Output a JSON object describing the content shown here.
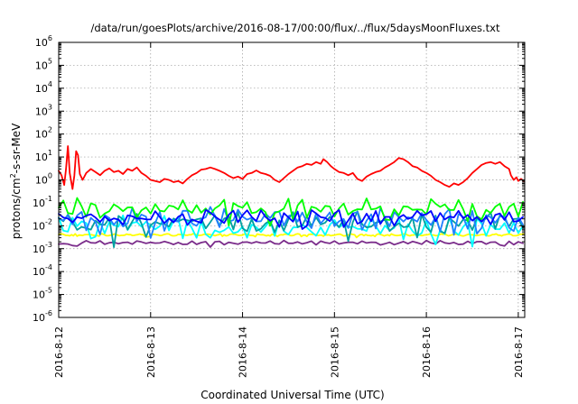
{
  "chart_data": {
    "type": "line",
    "title": "/data/run/goesPlots/archive/2016-08-17/00:00/flux/../flux/5daysMoonFluxes.txt",
    "xlabel": "Coordinated Universal Time (UTC)",
    "ylabel_base": "protons/cm",
    "ylabel_sup": "2",
    "ylabel_rest": "-s-sr-MeV",
    "x_range_days": [
      0,
      5.07
    ],
    "x_ticks": [
      {
        "label": "2016-8-12",
        "day": 0
      },
      {
        "label": "2016-8-13",
        "day": 1
      },
      {
        "label": "2016-8-14",
        "day": 2
      },
      {
        "label": "2016-8-15",
        "day": 3
      },
      {
        "label": "2016-8-16",
        "day": 4
      },
      {
        "label": "2016-8-17",
        "day": 5
      }
    ],
    "y_scale": "log",
    "y_range_exp": [
      -6,
      6
    ],
    "y_ticks": [
      {
        "base": "10",
        "exp": "6",
        "value": 6
      },
      {
        "base": "10",
        "exp": "5",
        "value": 5
      },
      {
        "base": "10",
        "exp": "4",
        "value": 4
      },
      {
        "base": "10",
        "exp": "3",
        "value": 3
      },
      {
        "base": "10",
        "exp": "2",
        "value": 2
      },
      {
        "base": "10",
        "exp": "1",
        "value": 1
      },
      {
        "base": "10",
        "exp": "0",
        "value": 0
      },
      {
        "base": "10",
        "exp": "-1",
        "value": -1
      },
      {
        "base": "10",
        "exp": "-2",
        "value": -2
      },
      {
        "base": "10",
        "exp": "-3",
        "value": -3
      },
      {
        "base": "10",
        "exp": "-4",
        "value": -4
      },
      {
        "base": "10",
        "exp": "-5",
        "value": -5
      },
      {
        "base": "10",
        "exp": "-6",
        "value": -6
      }
    ],
    "grid": true,
    "legend": "none",
    "series": [
      {
        "color": "#ffff00",
        "level": 0.004,
        "amp": 0.03,
        "jitter": 0.02,
        "period": 0.02
      },
      {
        "color": "#7b2d8b",
        "level": 0.0018,
        "amp": 0.06,
        "jitter": 0.05,
        "period": 0.05
      },
      {
        "color": "#00ffff",
        "level": 0.009,
        "amp": 0.25,
        "jitter": 0.3,
        "period": 0.05
      },
      {
        "color": "#00a0a0",
        "level": 0.013,
        "amp": 0.25,
        "jitter": 0.3,
        "period": 0.05
      },
      {
        "color": "#2080ff",
        "level": 0.02,
        "amp": 0.25,
        "jitter": 0.3,
        "period": 0.05
      },
      {
        "color": "#00ff00",
        "level": 0.06,
        "amp": 0.2,
        "jitter": 0.25,
        "period": 0.05
      },
      {
        "color": "#0000ff",
        "level": 0.022,
        "amp": 0.15,
        "jitter": 0.25,
        "period": 0.05
      },
      {
        "color": "#ff0000",
        "points": [
          [
            0.0,
            2.5
          ],
          [
            0.03,
            1.6
          ],
          [
            0.06,
            0.6
          ],
          [
            0.08,
            3.0
          ],
          [
            0.1,
            30
          ],
          [
            0.12,
            2.0
          ],
          [
            0.15,
            0.4
          ],
          [
            0.17,
            1.5
          ],
          [
            0.19,
            18
          ],
          [
            0.21,
            12
          ],
          [
            0.23,
            1.8
          ],
          [
            0.26,
            1.0
          ],
          [
            0.3,
            2.0
          ],
          [
            0.35,
            3.0
          ],
          [
            0.4,
            2.2
          ],
          [
            0.45,
            1.6
          ],
          [
            0.5,
            2.5
          ],
          [
            0.55,
            3.2
          ],
          [
            0.6,
            2.2
          ],
          [
            0.65,
            2.5
          ],
          [
            0.7,
            1.8
          ],
          [
            0.75,
            3.0
          ],
          [
            0.8,
            2.5
          ],
          [
            0.85,
            3.5
          ],
          [
            0.9,
            2.0
          ],
          [
            0.95,
            1.5
          ],
          [
            1.0,
            1.0
          ],
          [
            1.05,
            0.9
          ],
          [
            1.1,
            0.8
          ],
          [
            1.15,
            1.1
          ],
          [
            1.2,
            1.0
          ],
          [
            1.25,
            0.8
          ],
          [
            1.3,
            0.9
          ],
          [
            1.35,
            0.7
          ],
          [
            1.4,
            1.1
          ],
          [
            1.45,
            1.6
          ],
          [
            1.5,
            2.0
          ],
          [
            1.55,
            2.8
          ],
          [
            1.6,
            3.0
          ],
          [
            1.65,
            3.5
          ],
          [
            1.7,
            3.0
          ],
          [
            1.75,
            2.5
          ],
          [
            1.8,
            2.0
          ],
          [
            1.85,
            1.5
          ],
          [
            1.9,
            1.2
          ],
          [
            1.95,
            1.4
          ],
          [
            2.0,
            1.1
          ],
          [
            2.05,
            1.8
          ],
          [
            2.1,
            2.0
          ],
          [
            2.15,
            2.6
          ],
          [
            2.2,
            2.0
          ],
          [
            2.25,
            1.8
          ],
          [
            2.3,
            1.5
          ],
          [
            2.35,
            1.0
          ],
          [
            2.4,
            0.8
          ],
          [
            2.45,
            1.2
          ],
          [
            2.5,
            1.8
          ],
          [
            2.55,
            2.5
          ],
          [
            2.6,
            3.5
          ],
          [
            2.65,
            4.0
          ],
          [
            2.7,
            5.0
          ],
          [
            2.75,
            4.5
          ],
          [
            2.8,
            6.0
          ],
          [
            2.85,
            5.0
          ],
          [
            2.88,
            8.0
          ],
          [
            2.92,
            6.0
          ],
          [
            2.96,
            4.0
          ],
          [
            3.0,
            3.0
          ],
          [
            3.05,
            2.2
          ],
          [
            3.1,
            2.0
          ],
          [
            3.15,
            1.6
          ],
          [
            3.2,
            2.0
          ],
          [
            3.25,
            1.1
          ],
          [
            3.3,
            0.9
          ],
          [
            3.35,
            1.4
          ],
          [
            3.4,
            1.8
          ],
          [
            3.45,
            2.2
          ],
          [
            3.5,
            2.5
          ],
          [
            3.55,
            3.5
          ],
          [
            3.6,
            4.5
          ],
          [
            3.65,
            6.0
          ],
          [
            3.7,
            9.0
          ],
          [
            3.75,
            8.0
          ],
          [
            3.8,
            6.0
          ],
          [
            3.85,
            4.0
          ],
          [
            3.9,
            3.5
          ],
          [
            3.95,
            2.5
          ],
          [
            4.0,
            2.0
          ],
          [
            4.05,
            1.5
          ],
          [
            4.1,
            1.0
          ],
          [
            4.15,
            0.8
          ],
          [
            4.2,
            0.6
          ],
          [
            4.25,
            0.5
          ],
          [
            4.3,
            0.7
          ],
          [
            4.35,
            0.6
          ],
          [
            4.4,
            0.8
          ],
          [
            4.45,
            1.2
          ],
          [
            4.5,
            2.0
          ],
          [
            4.55,
            3.0
          ],
          [
            4.6,
            4.5
          ],
          [
            4.65,
            5.5
          ],
          [
            4.7,
            6.0
          ],
          [
            4.75,
            5.0
          ],
          [
            4.8,
            6.0
          ],
          [
            4.85,
            4.0
          ],
          [
            4.9,
            3.0
          ],
          [
            4.92,
            1.6
          ],
          [
            4.95,
            1.0
          ],
          [
            4.98,
            1.3
          ],
          [
            5.0,
            0.9
          ],
          [
            5.03,
            1.1
          ],
          [
            5.06,
            0.9
          ]
        ]
      }
    ]
  }
}
